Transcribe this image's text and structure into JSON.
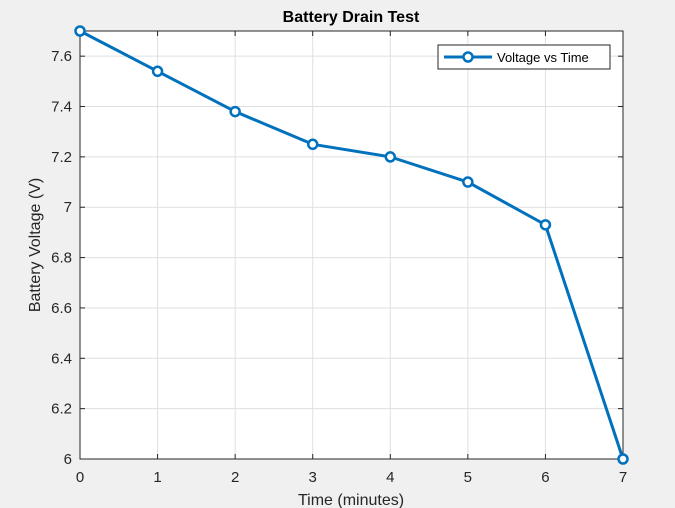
{
  "chart_data": {
    "type": "line",
    "title": "Battery Drain Test",
    "xlabel": "Time (minutes)",
    "ylabel": "Battery Voltage (V)",
    "xlim": [
      0,
      7
    ],
    "ylim": [
      6,
      7.7
    ],
    "xticks": [
      0,
      1,
      2,
      3,
      4,
      5,
      6,
      7
    ],
    "yticks": [
      6,
      6.2,
      6.4,
      6.6,
      6.8,
      7,
      7.2,
      7.4,
      7.6
    ],
    "xtick_labels": [
      "0",
      "1",
      "2",
      "3",
      "4",
      "5",
      "6",
      "7"
    ],
    "ytick_labels": [
      "6",
      "6.2",
      "6.4",
      "6.6",
      "6.8",
      "7",
      "7.2",
      "7.4",
      "7.6"
    ],
    "grid": true,
    "legend_position": "top-right",
    "series": [
      {
        "name": "Voltage vs Time",
        "color": "#0072bd",
        "marker": "circle",
        "x": [
          0,
          1,
          2,
          3,
          4,
          5,
          6,
          7
        ],
        "y": [
          7.7,
          7.54,
          7.38,
          7.25,
          7.2,
          7.1,
          6.93,
          6.0
        ]
      }
    ]
  }
}
